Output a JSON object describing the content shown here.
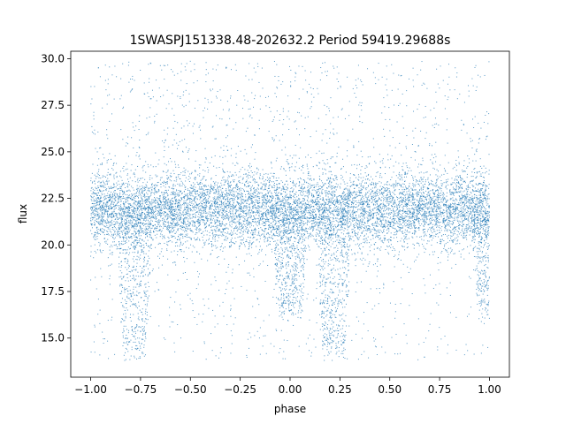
{
  "chart_data": {
    "type": "scatter",
    "title": "1SWASPJ151338.48-202632.2 Period 59419.29688s",
    "xlabel": "phase",
    "ylabel": "flux",
    "xlim": [
      -1.1,
      1.1
    ],
    "ylim": [
      12.9,
      30.4
    ],
    "x_ticks": [
      -1.0,
      -0.75,
      -0.5,
      -0.25,
      0.0,
      0.25,
      0.5,
      0.75,
      1.0
    ],
    "x_tick_labels": [
      "−1.00",
      "−0.75",
      "−0.50",
      "−0.25",
      "0.00",
      "0.25",
      "0.50",
      "0.75",
      "1.00"
    ],
    "y_ticks": [
      15.0,
      17.5,
      20.0,
      22.5,
      25.0,
      27.5,
      30.0
    ],
    "y_tick_labels": [
      "15.0",
      "17.5",
      "20.0",
      "22.5",
      "25.0",
      "27.5",
      "30.0"
    ],
    "grid": false,
    "marker_color": "#1f77b4",
    "phase_range": [
      -1.0,
      1.0
    ],
    "flux_range": [
      13.8,
      29.9
    ],
    "baseline_flux": 21.9,
    "baseline_band": [
      20.0,
      24.0
    ],
    "eclipses": [
      {
        "phase": -0.78,
        "min_flux": 14.2
      },
      {
        "phase": 0.0,
        "min_flux": 16.3
      },
      {
        "phase": 0.22,
        "min_flux": 14.2
      },
      {
        "phase": 1.0,
        "min_flux": 16.3
      }
    ]
  }
}
